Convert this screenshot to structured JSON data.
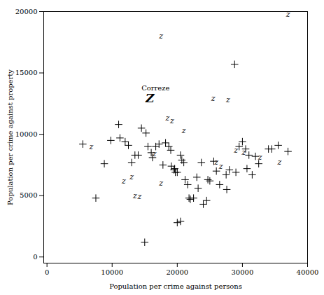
{
  "chart_data": {
    "type": "scatter",
    "xlabel": "Population per crime against persons",
    "ylabel": "Population per crime against property",
    "xlim": [
      -500,
      40000
    ],
    "ylim": [
      -500,
      20000
    ],
    "xticks": [
      0,
      10000,
      20000,
      30000,
      40000
    ],
    "yticks": [
      0,
      5000,
      10000,
      15000,
      20000
    ],
    "series": [
      {
        "marker": "+",
        "color": "#000000",
        "x": [
          5500,
          7500,
          8800,
          9800,
          11000,
          11200,
          12000,
          12500,
          13000,
          13500,
          14000,
          14500,
          15200,
          15500,
          16000,
          16200,
          16700,
          17200,
          17800,
          18200,
          18700,
          19000,
          19100,
          19500,
          19600,
          19700,
          20000,
          20500,
          20700,
          21000,
          21200,
          21600,
          21800,
          22000,
          22500,
          23000,
          23200,
          23700,
          24000,
          24500,
          24700,
          25000,
          25600,
          26000,
          26500,
          27500,
          27600,
          28000,
          28800,
          29000,
          29500,
          30000,
          30500,
          30700,
          31000,
          31500,
          32000,
          32500,
          34000,
          34500,
          35500,
          37000,
          15000,
          20000,
          20500
        ],
        "y": [
          9200,
          4800,
          7600,
          9500,
          10800,
          9700,
          9400,
          9100,
          7700,
          8300,
          8300,
          10500,
          10100,
          9000,
          8500,
          8100,
          9000,
          9200,
          7500,
          9300,
          9000,
          8700,
          7400,
          7100,
          7200,
          6900,
          6900,
          8300,
          7900,
          7700,
          6300,
          5900,
          4800,
          4700,
          4800,
          6500,
          5600,
          7700,
          4300,
          4600,
          6300,
          6200,
          7800,
          7000,
          5900,
          6700,
          5500,
          7100,
          15700,
          6900,
          9000,
          9400,
          8800,
          7200,
          8300,
          6700,
          8200,
          7600,
          8800,
          8800,
          9100,
          8600,
          1200,
          2800,
          2900
        ]
      },
      {
        "marker": "z",
        "color": "#000000",
        "x": [
          6800,
          13000,
          11800,
          13500,
          14200,
          16500,
          17500,
          18500,
          19200,
          21000,
          25500,
          27800,
          26000,
          26700,
          29000,
          30200,
          32700,
          35700,
          37000,
          17500
        ],
        "y": [
          9000,
          6500,
          6200,
          5000,
          4900,
          8400,
          6000,
          11300,
          11100,
          10300,
          12900,
          12800,
          7700,
          7400,
          8700,
          8500,
          8100,
          7700,
          19800,
          18000
        ]
      },
      {
        "marker": "Z",
        "color": "#000000",
        "x": [
          15800
        ],
        "y": [
          12900
        ]
      }
    ],
    "annotations": [
      {
        "text": "Correze",
        "x": 14500,
        "y": 13600
      }
    ]
  }
}
